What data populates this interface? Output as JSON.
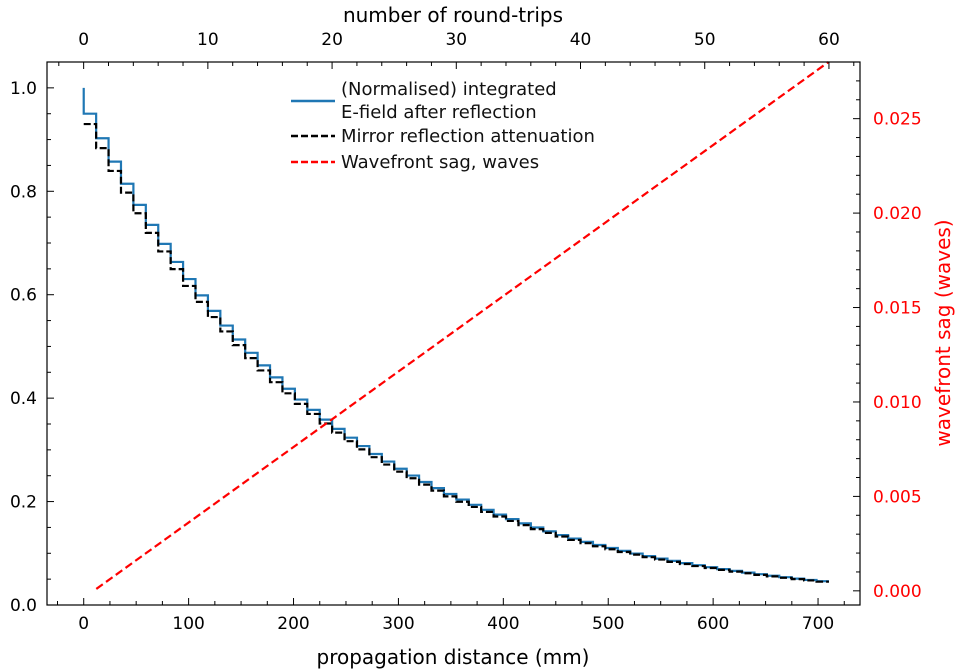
{
  "chart_data": {
    "type": "line",
    "xlabel": "propagation distance (mm)",
    "x2label": "number of round-trips",
    "ylabel": "",
    "y2label": "wavefront sag (waves)",
    "xlim": [
      -35,
      740
    ],
    "ylim": [
      0,
      1.05
    ],
    "y2lim": [
      -0.00075,
      0.028
    ],
    "x2lim": [
      -2.95,
      62.5
    ],
    "x_ticks": [
      0,
      100,
      200,
      300,
      400,
      500,
      600,
      700
    ],
    "y_ticks": [
      0.0,
      0.2,
      0.4,
      0.6,
      0.8,
      1.0
    ],
    "y2_ticks": [
      0.0,
      0.005,
      0.01,
      0.015,
      0.02,
      0.025
    ],
    "x2_ticks": [
      0,
      10,
      20,
      30,
      40,
      50,
      60
    ],
    "x_tick_labels": [
      "0",
      "100",
      "200",
      "300",
      "400",
      "500",
      "600",
      "700"
    ],
    "y_tick_labels": [
      "0.0",
      "0.2",
      "0.4",
      "0.6",
      "0.8",
      "1.0"
    ],
    "y2_tick_labels": [
      "0.000",
      "0.005",
      "0.010",
      "0.015",
      "0.020",
      "0.025"
    ],
    "x2_tick_labels": [
      "0",
      "10",
      "20",
      "30",
      "40",
      "50",
      "60"
    ],
    "colors": {
      "efield": "#1f77b4",
      "attenuation": "#000000",
      "sag": "#ff0000",
      "secondary_axis": "#ff0000"
    },
    "series": [
      {
        "name": "(Normalised) integrated\nE-field after reflection",
        "style": "solid-step",
        "axis": "left",
        "step_width_mm": 11.84,
        "x_start": 0,
        "x_end": 710,
        "start_value": 1.0,
        "decay_per_step": 0.95
      },
      {
        "name": "Mirror reflection attenuation",
        "style": "dashed-step",
        "axis": "left",
        "step_width_mm": 11.84,
        "x_start": 0,
        "x_end": 710,
        "first_value": 0.93,
        "decay_per_step": 0.95
      },
      {
        "name": "Wavefront sag, waves",
        "style": "dashed",
        "axis": "right",
        "points": [
          [
            12,
            0.0001
          ],
          [
            710,
            0.028
          ]
        ]
      }
    ],
    "legend_position": "top-center",
    "grid": false
  }
}
